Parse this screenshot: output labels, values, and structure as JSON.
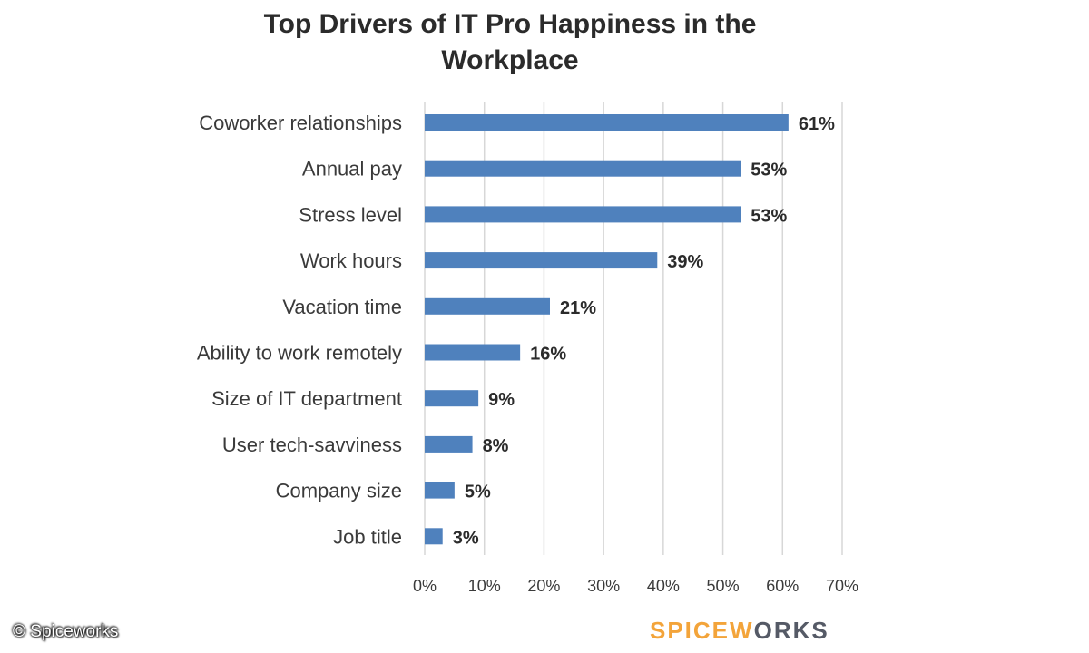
{
  "chart_data": {
    "type": "bar",
    "orientation": "horizontal",
    "title_lines": [
      "Top Drivers of IT Pro Happiness in the",
      "Workplace"
    ],
    "categories": [
      "Coworker relationships",
      "Annual pay",
      "Stress level",
      "Work hours",
      "Vacation time",
      "Ability to work remotely",
      "Size of IT department",
      "User tech-savviness",
      "Company size",
      "Job title"
    ],
    "values": [
      61,
      53,
      53,
      39,
      21,
      16,
      9,
      8,
      5,
      3
    ],
    "value_labels": [
      "61%",
      "53%",
      "53%",
      "39%",
      "21%",
      "16%",
      "9%",
      "8%",
      "5%",
      "3%"
    ],
    "xlim": [
      0,
      70
    ],
    "xticks": [
      0,
      10,
      20,
      30,
      40,
      50,
      60,
      70
    ],
    "xtick_labels": [
      "0%",
      "10%",
      "20%",
      "30%",
      "40%",
      "50%",
      "60%",
      "70%"
    ],
    "grid": true,
    "legend": "none",
    "bar_color": "#4f81bd"
  },
  "footer": {
    "copyright": "© Spiceworks",
    "brand_left": "SPICEW",
    "brand_right": "RKS"
  },
  "colors": {
    "brand_orange": "#f3a43a",
    "brand_gray": "#555a66"
  }
}
